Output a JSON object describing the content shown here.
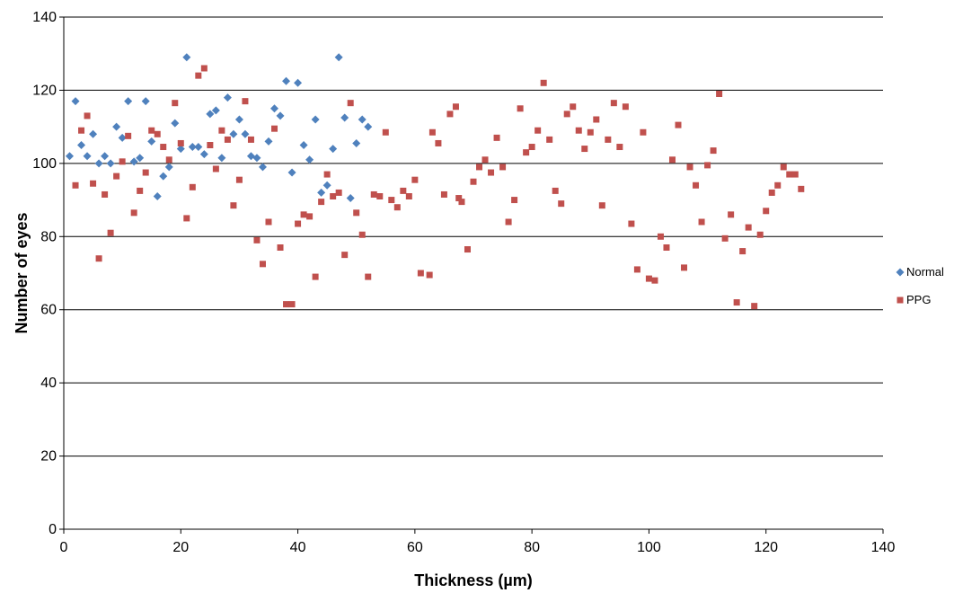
{
  "chart_data": {
    "type": "scatter",
    "title": "",
    "xlabel": "Thickness (µm)",
    "ylabel": "Number of eyes",
    "xlim": [
      0,
      140
    ],
    "ylim": [
      0,
      140
    ],
    "xticks": [
      0,
      20,
      40,
      60,
      80,
      100,
      120,
      140
    ],
    "yticks": [
      0,
      20,
      40,
      60,
      80,
      100,
      120,
      140
    ],
    "grid": "horizontal",
    "legend_position": "right",
    "series": [
      {
        "name": "Normal",
        "color": "#4F81BD",
        "marker": "diamond",
        "points": [
          [
            1,
            102
          ],
          [
            2,
            117
          ],
          [
            3,
            105
          ],
          [
            4,
            102
          ],
          [
            5,
            108
          ],
          [
            6,
            100
          ],
          [
            7,
            102
          ],
          [
            8,
            100
          ],
          [
            9,
            110
          ],
          [
            10,
            107
          ],
          [
            11,
            117
          ],
          [
            12,
            100.5
          ],
          [
            13,
            101.5
          ],
          [
            14,
            117
          ],
          [
            15,
            106
          ],
          [
            16,
            91
          ],
          [
            17,
            96.5
          ],
          [
            18,
            99
          ],
          [
            19,
            111
          ],
          [
            20,
            104
          ],
          [
            21,
            129
          ],
          [
            22,
            104.5
          ],
          [
            23,
            104.5
          ],
          [
            24,
            102.5
          ],
          [
            25,
            113.5
          ],
          [
            26,
            114.5
          ],
          [
            27,
            101.5
          ],
          [
            28,
            118
          ],
          [
            29,
            108
          ],
          [
            30,
            112
          ],
          [
            31,
            108
          ],
          [
            32,
            102
          ],
          [
            33,
            101.5
          ],
          [
            34,
            99
          ],
          [
            35,
            106
          ],
          [
            36,
            115
          ],
          [
            37,
            113
          ],
          [
            38,
            122.5
          ],
          [
            39,
            97.5
          ],
          [
            40,
            122
          ],
          [
            41,
            105
          ],
          [
            42,
            101
          ],
          [
            43,
            112
          ],
          [
            44,
            92
          ],
          [
            45,
            94
          ],
          [
            46,
            104
          ],
          [
            47,
            129
          ],
          [
            48,
            112.5
          ],
          [
            49,
            90.5
          ],
          [
            50,
            105.5
          ],
          [
            51,
            112
          ],
          [
            52,
            110
          ]
        ]
      },
      {
        "name": "PPG",
        "color": "#C0504D",
        "marker": "square",
        "points": [
          [
            2,
            94
          ],
          [
            3,
            109
          ],
          [
            4,
            113
          ],
          [
            5,
            94.5
          ],
          [
            6,
            74
          ],
          [
            7,
            91.5
          ],
          [
            8,
            81
          ],
          [
            9,
            96.5
          ],
          [
            10,
            100.5
          ],
          [
            11,
            107.5
          ],
          [
            12,
            86.5
          ],
          [
            13,
            92.5
          ],
          [
            14,
            97.5
          ],
          [
            15,
            109
          ],
          [
            16,
            108
          ],
          [
            17,
            104.5
          ],
          [
            18,
            101
          ],
          [
            19,
            116.5
          ],
          [
            20,
            105.5
          ],
          [
            21,
            85
          ],
          [
            22,
            93.5
          ],
          [
            23,
            124
          ],
          [
            24,
            126
          ],
          [
            25,
            105
          ],
          [
            26,
            98.5
          ],
          [
            27,
            109
          ],
          [
            28,
            106.5
          ],
          [
            29,
            88.5
          ],
          [
            30,
            95.5
          ],
          [
            31,
            117
          ],
          [
            32,
            106.5
          ],
          [
            33,
            79
          ],
          [
            34,
            72.5
          ],
          [
            35,
            84
          ],
          [
            36,
            109.5
          ],
          [
            37,
            77
          ],
          [
            38,
            61.5
          ],
          [
            39,
            61.5
          ],
          [
            40,
            83.5
          ],
          [
            41,
            86
          ],
          [
            42,
            85.5
          ],
          [
            43,
            69
          ],
          [
            44,
            89.5
          ],
          [
            45,
            97
          ],
          [
            46,
            91
          ],
          [
            47,
            92
          ],
          [
            48,
            75
          ],
          [
            49,
            116.5
          ],
          [
            50,
            86.5
          ],
          [
            51,
            80.5
          ],
          [
            52,
            69
          ],
          [
            53,
            91.5
          ],
          [
            54,
            91
          ],
          [
            55,
            108.5
          ],
          [
            56,
            90
          ],
          [
            57,
            88
          ],
          [
            58,
            92.5
          ],
          [
            59,
            91
          ],
          [
            60,
            95.5
          ],
          [
            61,
            70
          ],
          [
            62.5,
            69.5
          ],
          [
            63,
            108.5
          ],
          [
            64,
            105.5
          ],
          [
            65,
            91.5
          ],
          [
            66,
            113.5
          ],
          [
            67,
            115.5
          ],
          [
            67.5,
            90.5
          ],
          [
            68,
            89.5
          ],
          [
            69,
            76.5
          ],
          [
            70,
            95
          ],
          [
            71,
            99
          ],
          [
            72,
            101
          ],
          [
            73,
            97.5
          ],
          [
            74,
            107
          ],
          [
            75,
            99
          ],
          [
            76,
            84
          ],
          [
            77,
            90
          ],
          [
            78,
            115
          ],
          [
            79,
            103
          ],
          [
            80,
            104.5
          ],
          [
            81,
            109
          ],
          [
            82,
            122
          ],
          [
            83,
            106.5
          ],
          [
            84,
            92.5
          ],
          [
            85,
            89
          ],
          [
            86,
            113.5
          ],
          [
            87,
            115.5
          ],
          [
            88,
            109
          ],
          [
            89,
            104
          ],
          [
            90,
            108.5
          ],
          [
            91,
            112
          ],
          [
            92,
            88.5
          ],
          [
            93,
            106.5
          ],
          [
            94,
            116.5
          ],
          [
            95,
            104.5
          ],
          [
            96,
            115.5
          ],
          [
            97,
            83.5
          ],
          [
            98,
            71
          ],
          [
            99,
            108.5
          ],
          [
            100,
            68.5
          ],
          [
            101,
            68
          ],
          [
            102,
            80
          ],
          [
            103,
            77
          ],
          [
            104,
            101
          ],
          [
            105,
            110.5
          ],
          [
            106,
            71.5
          ],
          [
            107,
            99
          ],
          [
            108,
            94
          ],
          [
            109,
            84
          ],
          [
            110,
            99.5
          ],
          [
            111,
            103.5
          ],
          [
            112,
            119
          ],
          [
            113,
            79.5
          ],
          [
            114,
            86
          ],
          [
            115,
            62
          ],
          [
            116,
            76
          ],
          [
            117,
            82.5
          ],
          [
            118,
            61
          ],
          [
            119,
            80.5
          ],
          [
            120,
            87
          ],
          [
            121,
            92
          ],
          [
            122,
            94
          ],
          [
            123,
            99
          ],
          [
            124,
            97
          ],
          [
            125,
            97
          ],
          [
            126,
            93
          ]
        ]
      }
    ]
  }
}
